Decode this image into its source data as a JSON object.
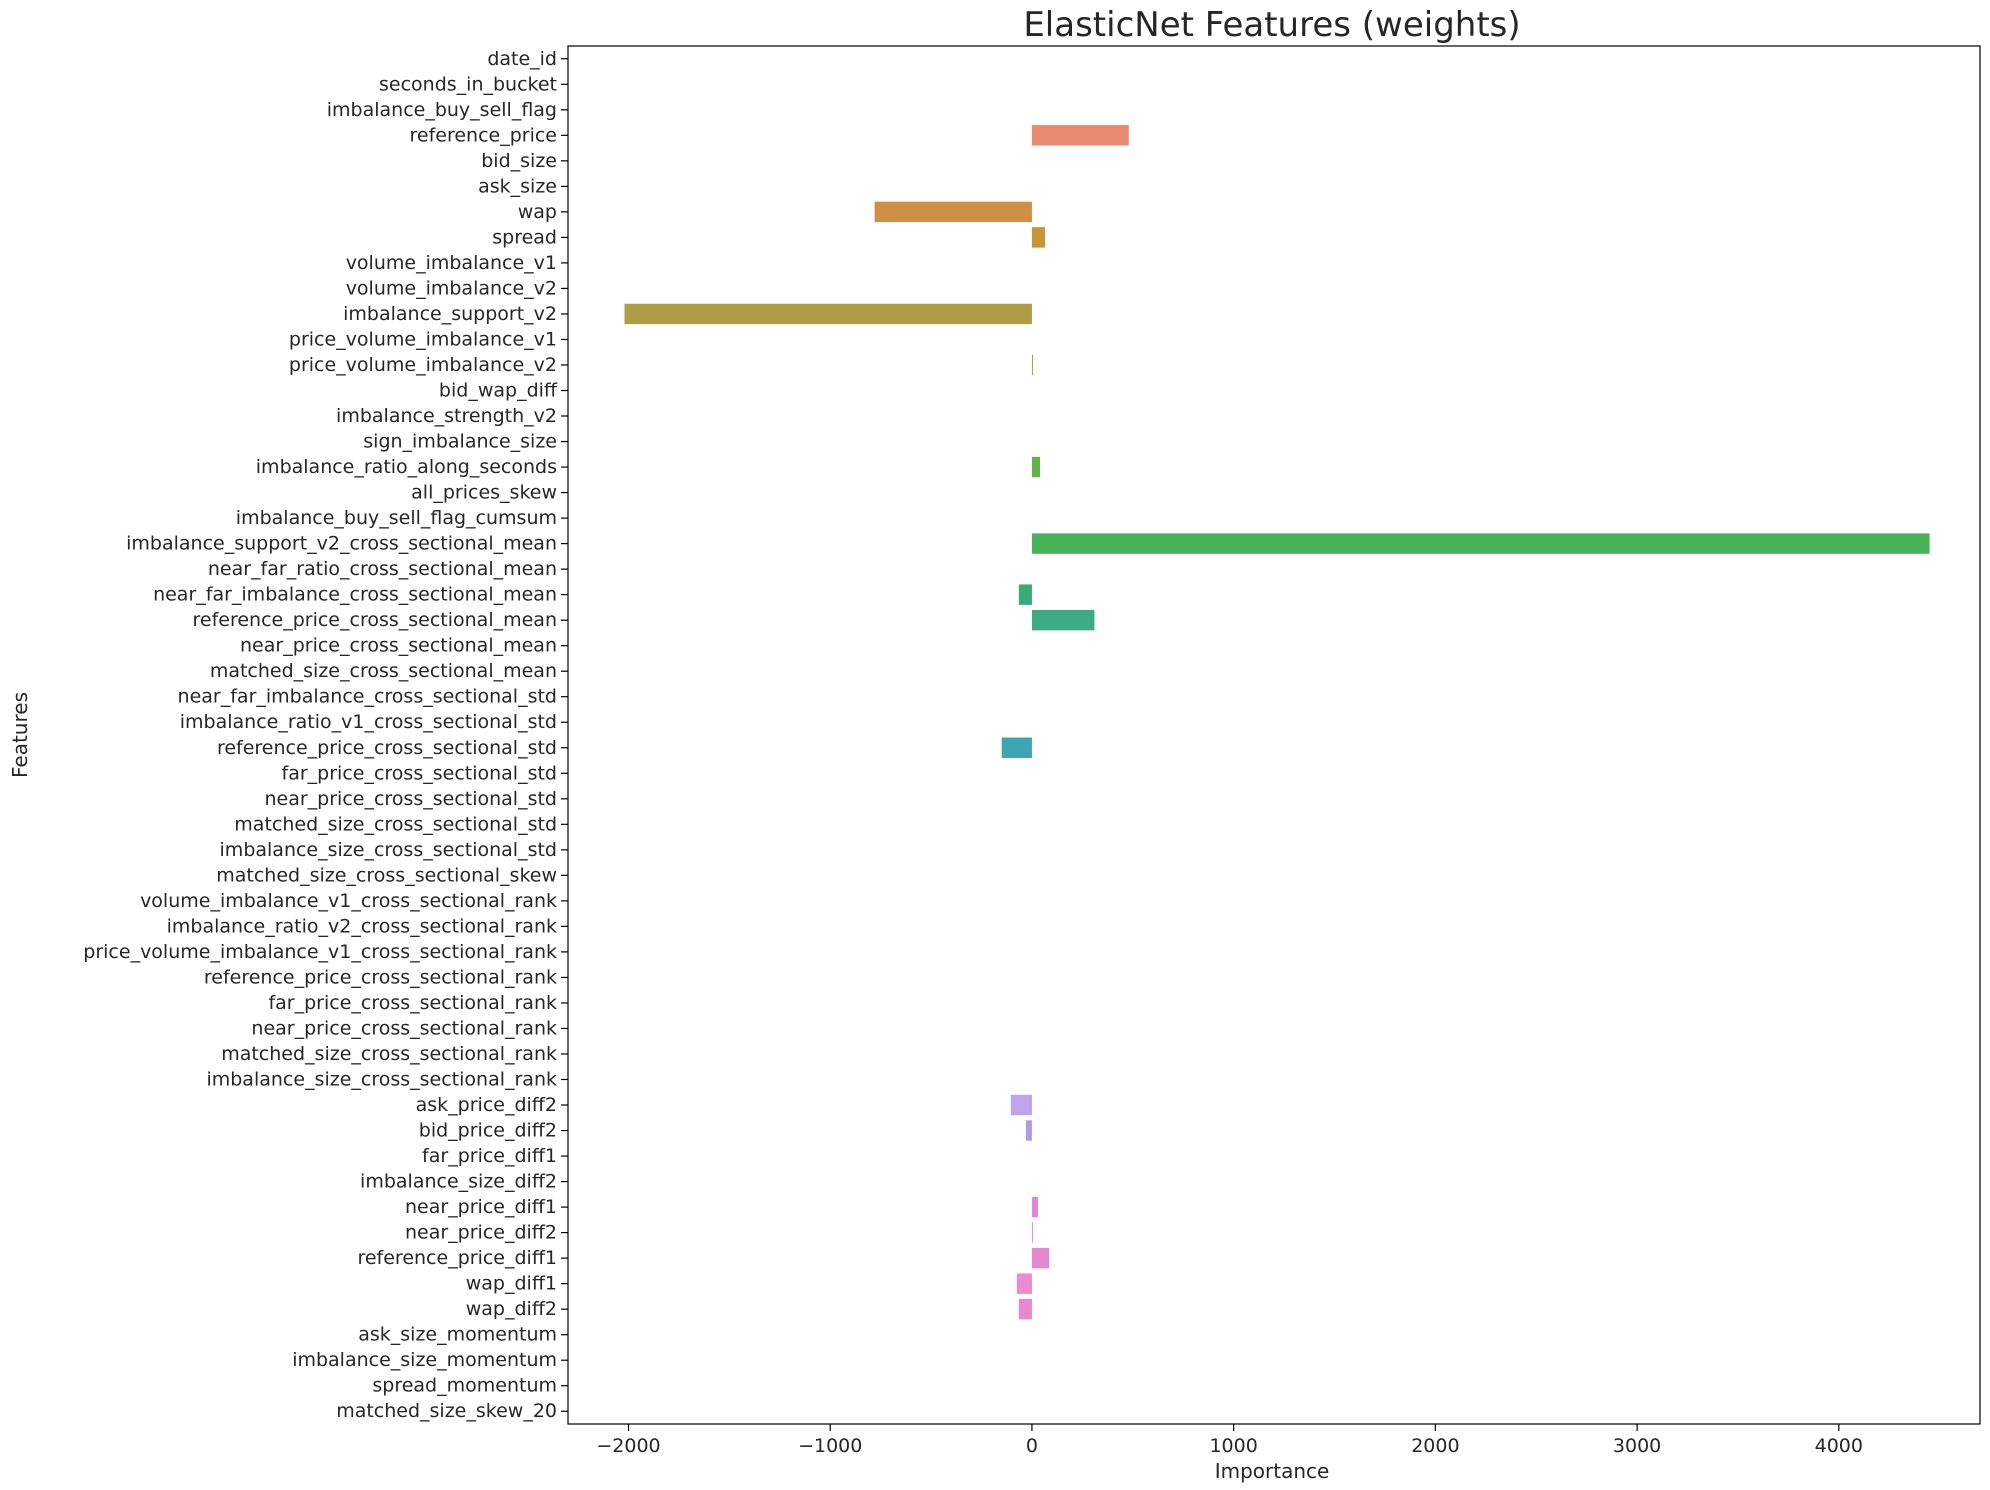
{
  "chart_data": {
    "type": "bar",
    "orientation": "horizontal",
    "title": "ElasticNet Features (weights)",
    "xlabel": "Importance",
    "ylabel": "Features",
    "xlim": [
      -2300,
      4700
    ],
    "xticks": [
      -2000,
      -1000,
      0,
      1000,
      2000,
      3000,
      4000
    ],
    "xtick_labels": [
      "−2000",
      "−1000",
      "0",
      "1000",
      "2000",
      "3000",
      "4000"
    ],
    "grid": false,
    "legend": "none",
    "categories": [
      "date_id",
      "seconds_in_bucket",
      "imbalance_buy_sell_flag",
      "reference_price",
      "bid_size",
      "ask_size",
      "wap",
      "spread",
      "volume_imbalance_v1",
      "volume_imbalance_v2",
      "imbalance_support_v2",
      "price_volume_imbalance_v1",
      "price_volume_imbalance_v2",
      "bid_wap_diff",
      "imbalance_strength_v2",
      "sign_imbalance_size",
      "imbalance_ratio_along_seconds",
      "all_prices_skew",
      "imbalance_buy_sell_flag_cumsum",
      "imbalance_support_v2_cross_sectional_mean",
      "near_far_ratio_cross_sectional_mean",
      "near_far_imbalance_cross_sectional_mean",
      "reference_price_cross_sectional_mean",
      "near_price_cross_sectional_mean",
      "matched_size_cross_sectional_mean",
      "near_far_imbalance_cross_sectional_std",
      "imbalance_ratio_v1_cross_sectional_std",
      "reference_price_cross_sectional_std",
      "far_price_cross_sectional_std",
      "near_price_cross_sectional_std",
      "matched_size_cross_sectional_std",
      "imbalance_size_cross_sectional_std",
      "matched_size_cross_sectional_skew",
      "volume_imbalance_v1_cross_sectional_rank",
      "imbalance_ratio_v2_cross_sectional_rank",
      "price_volume_imbalance_v1_cross_sectional_rank",
      "reference_price_cross_sectional_rank",
      "far_price_cross_sectional_rank",
      "near_price_cross_sectional_rank",
      "matched_size_cross_sectional_rank",
      "imbalance_size_cross_sectional_rank",
      "ask_price_diff2",
      "bid_price_diff2",
      "far_price_diff1",
      "imbalance_size_diff2",
      "near_price_diff1",
      "near_price_diff2",
      "reference_price_diff1",
      "wap_diff1",
      "wap_diff2",
      "ask_size_momentum",
      "imbalance_size_momentum",
      "spread_momentum",
      "matched_size_skew_20"
    ],
    "values": [
      0,
      0,
      0,
      480,
      0,
      0,
      -780,
      65,
      0,
      0,
      -2020,
      0,
      5,
      0,
      0,
      0,
      40,
      0,
      0,
      4450,
      0,
      -65,
      310,
      0,
      0,
      0,
      0,
      -150,
      0,
      0,
      0,
      0,
      0,
      0,
      0,
      0,
      0,
      0,
      0,
      0,
      0,
      -105,
      -30,
      0,
      0,
      30,
      5,
      85,
      -75,
      -65,
      0,
      0,
      0,
      0
    ],
    "colors": [
      "#f77189",
      "#f5726f",
      "#f37650",
      "#e98a70",
      "#e0803b",
      "#d58844",
      "#cf8f46",
      "#ca9339",
      "#bd9a32",
      "#b39d34",
      "#ae9d46",
      "#a2a036",
      "#98a638",
      "#8ca838",
      "#7dac3b",
      "#6db33d",
      "#5fb348",
      "#4fb244",
      "#46b050",
      "#47b257",
      "#43ae6a",
      "#38ab7a",
      "#3dab84",
      "#39aa8d",
      "#36a896",
      "#37a89f",
      "#38a6a8",
      "#3ba6b1",
      "#3aa3b5",
      "#3ca3bb",
      "#3ea2c2",
      "#45a2ce",
      "#51a1d6",
      "#5da0df",
      "#6b9de9",
      "#7b99ef",
      "#8f94ef",
      "#a18fed",
      "#b18ae9",
      "#bd89e6",
      "#c889e3",
      "#bda4ec",
      "#b09be6",
      "#c08ae4",
      "#cc86e0",
      "#dd86de",
      "#e88ad8",
      "#e688d1",
      "#e98bcc",
      "#ea87cf",
      "#ec86c4",
      "#f17cbd",
      "#f47bad",
      "#f5759f"
    ]
  }
}
